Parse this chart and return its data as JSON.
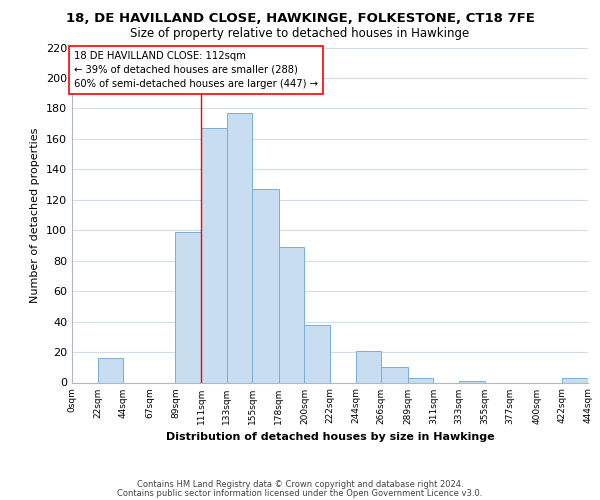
{
  "title": "18, DE HAVILLAND CLOSE, HAWKINGE, FOLKESTONE, CT18 7FE",
  "subtitle": "Size of property relative to detached houses in Hawkinge",
  "xlabel": "Distribution of detached houses by size in Hawkinge",
  "ylabel": "Number of detached properties",
  "bar_left_edges": [
    0,
    22,
    44,
    67,
    89,
    111,
    133,
    155,
    178,
    200,
    222,
    244,
    266,
    289,
    311,
    333,
    355,
    377,
    400,
    422
  ],
  "bar_widths": [
    22,
    22,
    23,
    22,
    22,
    22,
    22,
    23,
    22,
    22,
    22,
    22,
    23,
    22,
    22,
    22,
    22,
    23,
    22,
    22
  ],
  "bar_heights": [
    0,
    16,
    0,
    0,
    99,
    167,
    177,
    127,
    89,
    38,
    0,
    21,
    10,
    3,
    0,
    1,
    0,
    0,
    0,
    3
  ],
  "bar_color": "#c8ddf0",
  "bar_edge_color": "#7bafd4",
  "tick_labels": [
    "0sqm",
    "22sqm",
    "44sqm",
    "67sqm",
    "89sqm",
    "111sqm",
    "133sqm",
    "155sqm",
    "178sqm",
    "200sqm",
    "222sqm",
    "244sqm",
    "266sqm",
    "289sqm",
    "311sqm",
    "333sqm",
    "355sqm",
    "377sqm",
    "400sqm",
    "422sqm",
    "444sqm"
  ],
  "ylim": [
    0,
    220
  ],
  "yticks": [
    0,
    20,
    40,
    60,
    80,
    100,
    120,
    140,
    160,
    180,
    200,
    220
  ],
  "property_line_x": 111,
  "annotation_line1": "18 DE HAVILLAND CLOSE: 112sqm",
  "annotation_line2": "← 39% of detached houses are smaller (288)",
  "annotation_line3": "60% of semi-detached houses are larger (447) →",
  "footer_line1": "Contains HM Land Registry data © Crown copyright and database right 2024.",
  "footer_line2": "Contains public sector information licensed under the Open Government Licence v3.0.",
  "background_color": "#ffffff",
  "grid_color": "#d0dce8"
}
